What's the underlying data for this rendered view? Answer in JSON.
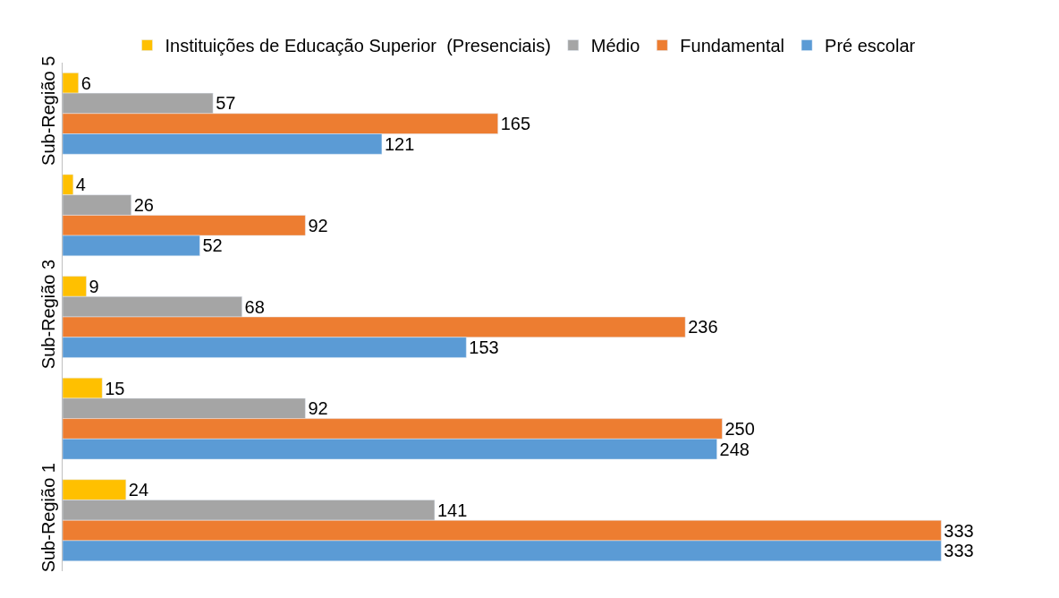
{
  "chart_data": {
    "type": "bar",
    "orientation": "horizontal",
    "categories": [
      "Sub-Região 5",
      null,
      "Sub-Região 3",
      null,
      "Sub-Região 1"
    ],
    "series": [
      {
        "name": "Instituições de Educação Superior  (Presenciais)",
        "color": "#ffc000",
        "values": [
          6,
          4,
          9,
          15,
          24
        ]
      },
      {
        "name": "Médio",
        "color": "#a5a5a5",
        "values": [
          57,
          26,
          68,
          92,
          141
        ]
      },
      {
        "name": "Fundamental",
        "color": "#ed7d31",
        "values": [
          165,
          92,
          236,
          250,
          333
        ]
      },
      {
        "name": "Pré escolar",
        "color": "#5b9bd5",
        "values": [
          121,
          52,
          153,
          248,
          333
        ]
      }
    ],
    "data_labels": true,
    "legend": "top"
  }
}
